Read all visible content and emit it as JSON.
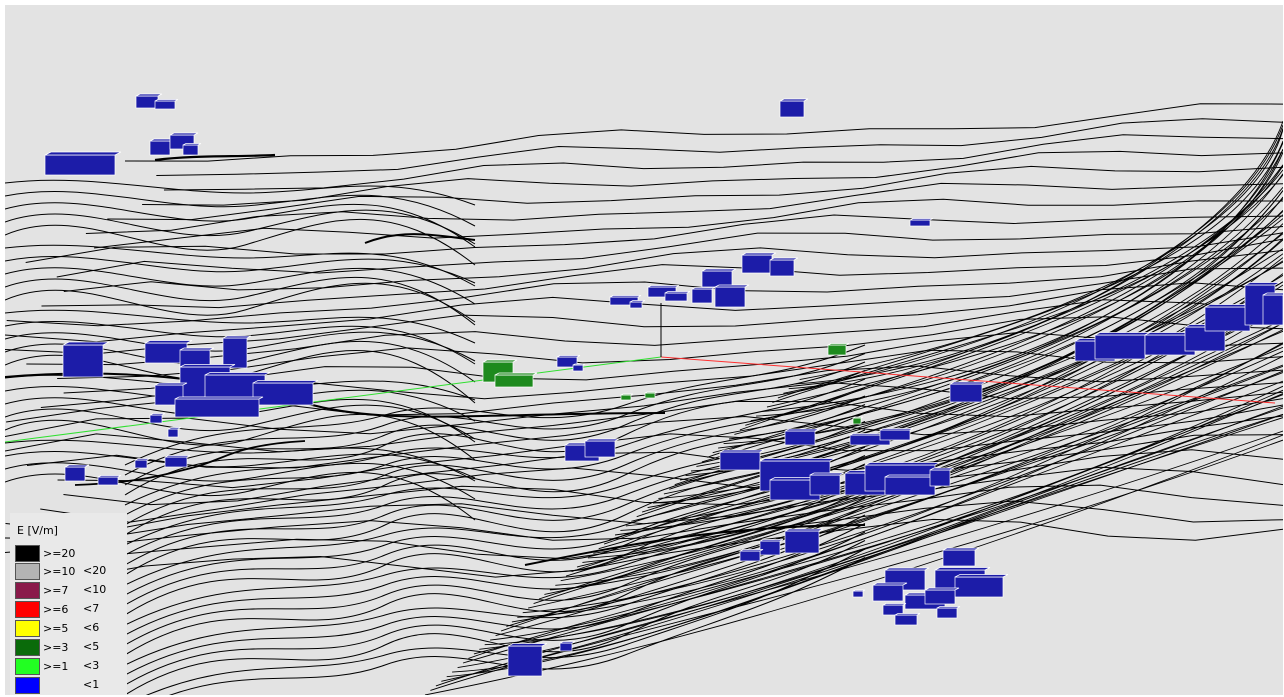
{
  "legend": {
    "title": "E [V/m]",
    "rows": [
      {
        "ge": ">=20",
        "lt": "",
        "color": "#000000"
      },
      {
        "ge": ">=10",
        "lt": "<20",
        "color": "#b4b4b4"
      },
      {
        "ge": ">=7",
        "lt": "<10",
        "color": "#8a1a4a"
      },
      {
        "ge": ">=6",
        "lt": "<7",
        "color": "#ff0000"
      },
      {
        "ge": ">=5",
        "lt": "<6",
        "color": "#ffff00"
      },
      {
        "ge": ">=3",
        "lt": "<5",
        "color": "#0a6b0a"
      },
      {
        "ge": ">=1",
        "lt": "<3",
        "color": "#22ff22"
      },
      {
        "ge": "",
        "lt": "<1",
        "color": "#0000ff"
      }
    ]
  },
  "colors": {
    "background": "#e3e3e3",
    "contour": "#000000",
    "building_low": "#1c1ca8",
    "building_mid": "#1d8a1d",
    "axis_x": "#ff3030",
    "axis_y": "#30e030",
    "axis_z": "#000000"
  }
}
